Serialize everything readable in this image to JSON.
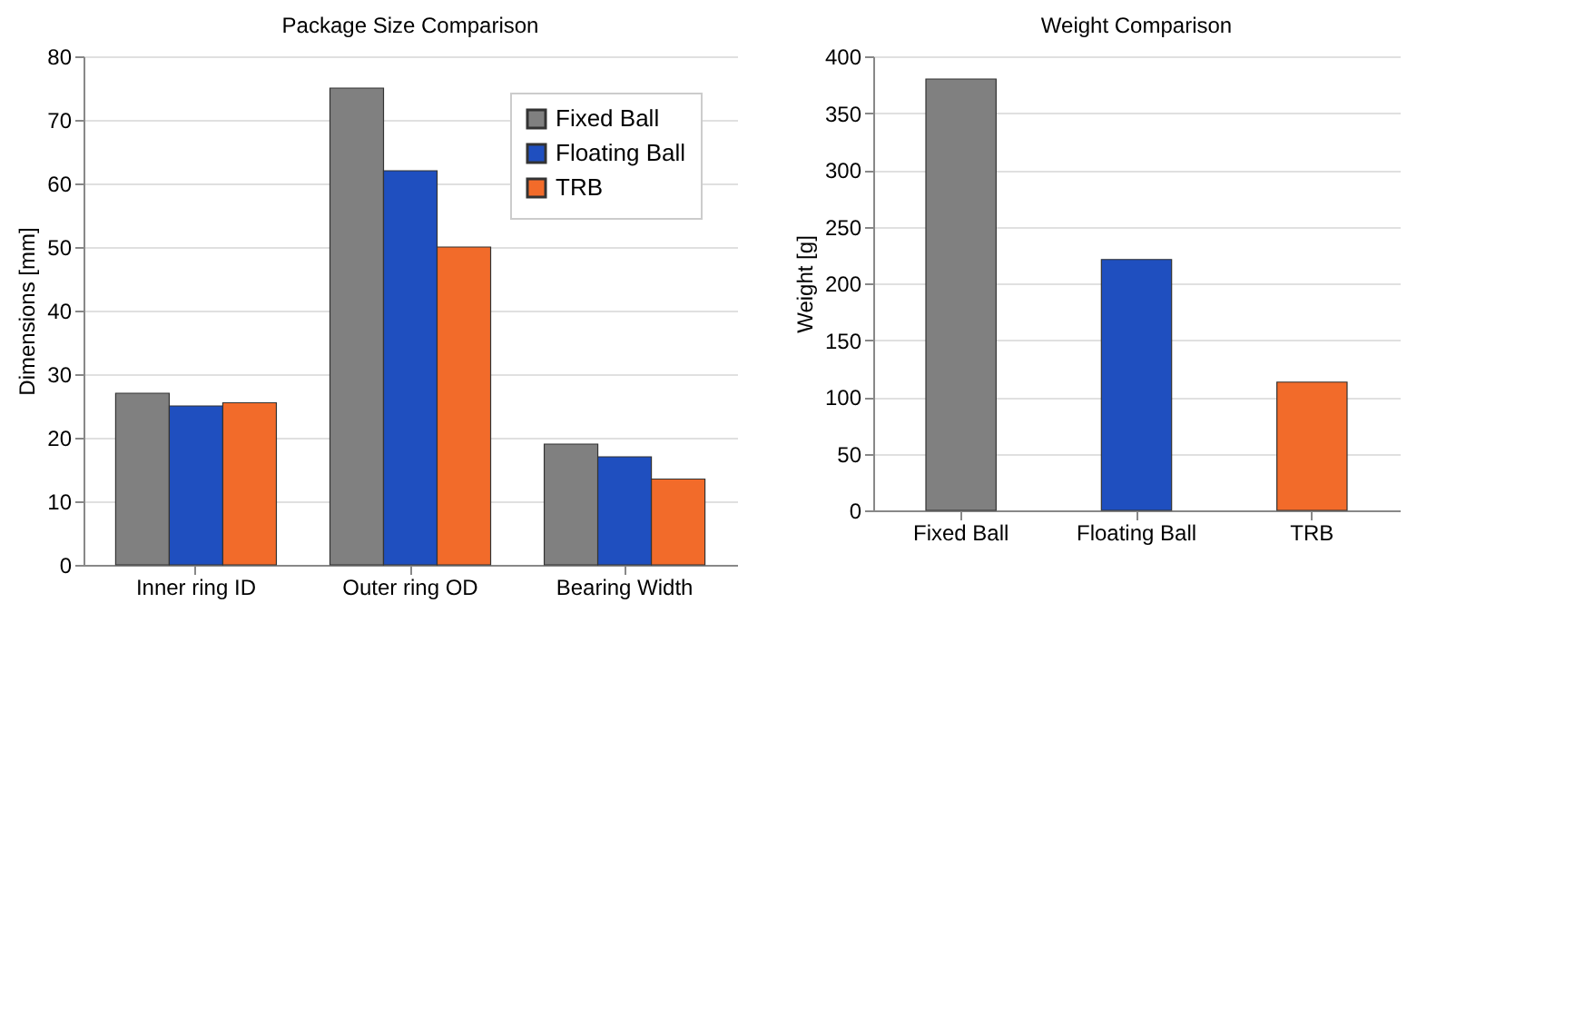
{
  "chart_data": [
    {
      "type": "bar",
      "title": "Package Size Comparison",
      "ylabel": "Dimensions [mm]",
      "categories": [
        "Inner ring ID",
        "Outer ring OD",
        "Bearing Width"
      ],
      "series": [
        {
          "name": "Fixed Ball",
          "color": "#808080",
          "values": [
            27,
            75,
            19
          ]
        },
        {
          "name": "Floating Ball",
          "color": "#1f4fbf",
          "values": [
            25,
            62,
            17
          ]
        },
        {
          "name": "TRB",
          "color": "#f26b2a",
          "values": [
            25.5,
            50,
            13.5
          ]
        }
      ],
      "ylim": [
        0,
        80
      ],
      "yticks": [
        0,
        10,
        20,
        30,
        40,
        50,
        60,
        70,
        80
      ],
      "grid": "y",
      "legend": "top right"
    },
    {
      "type": "bar",
      "title": "Weight Comparison",
      "ylabel": "Weight [g]",
      "categories": [
        "Fixed Ball",
        "Floating Ball",
        "TRB"
      ],
      "values": [
        380,
        221,
        113
      ],
      "colors": [
        "#808080",
        "#1f4fbf",
        "#f26b2a"
      ],
      "ylim": [
        0,
        400
      ],
      "yticks": [
        0,
        50,
        100,
        150,
        200,
        250,
        300,
        350,
        400
      ],
      "grid": "y"
    }
  ]
}
